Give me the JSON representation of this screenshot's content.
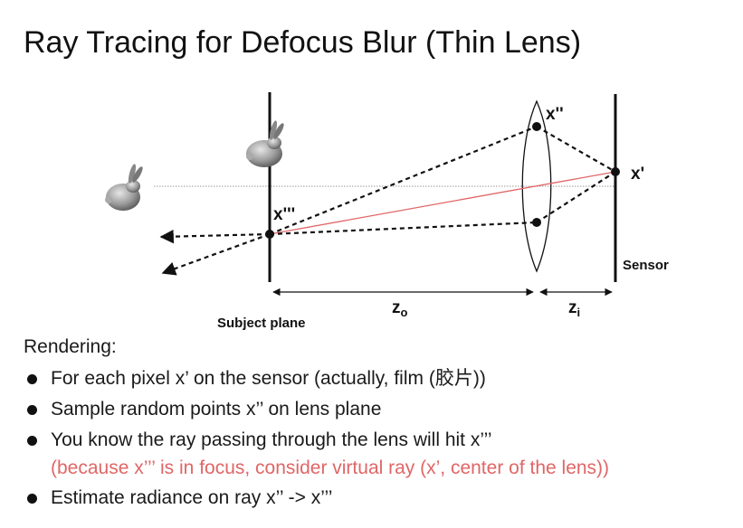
{
  "slide": {
    "title": "Ray Tracing for Defocus Blur (Thin Lens)"
  },
  "diagram": {
    "labels": {
      "x_triple_prime": "x'''",
      "x_double_prime": "x''",
      "x_prime": "x'",
      "sensor": "Sensor",
      "subject_plane": "Subject plane",
      "z_o": "z",
      "z_o_sub": "o",
      "z_i": "z",
      "z_i_sub": "i"
    },
    "colors": {
      "ray": "#111111",
      "center_ray": "#e06666",
      "axis": "#999999"
    },
    "icons": [
      "bunny-in-focus-icon",
      "bunny-far-icon"
    ]
  },
  "rendering": {
    "heading": "Rendering:",
    "bullets": [
      {
        "text": "For each pixel x’ on the sensor (actually, film (胶片))"
      },
      {
        "text": "Sample random points x’’ on lens plane"
      },
      {
        "text": "You know the ray passing through the lens will hit x’’’",
        "note": "(because x’’’ is in focus, consider virtual ray (x’, center of the lens))"
      },
      {
        "text": "Estimate radiance on ray x’’ -> x’’’"
      }
    ]
  }
}
